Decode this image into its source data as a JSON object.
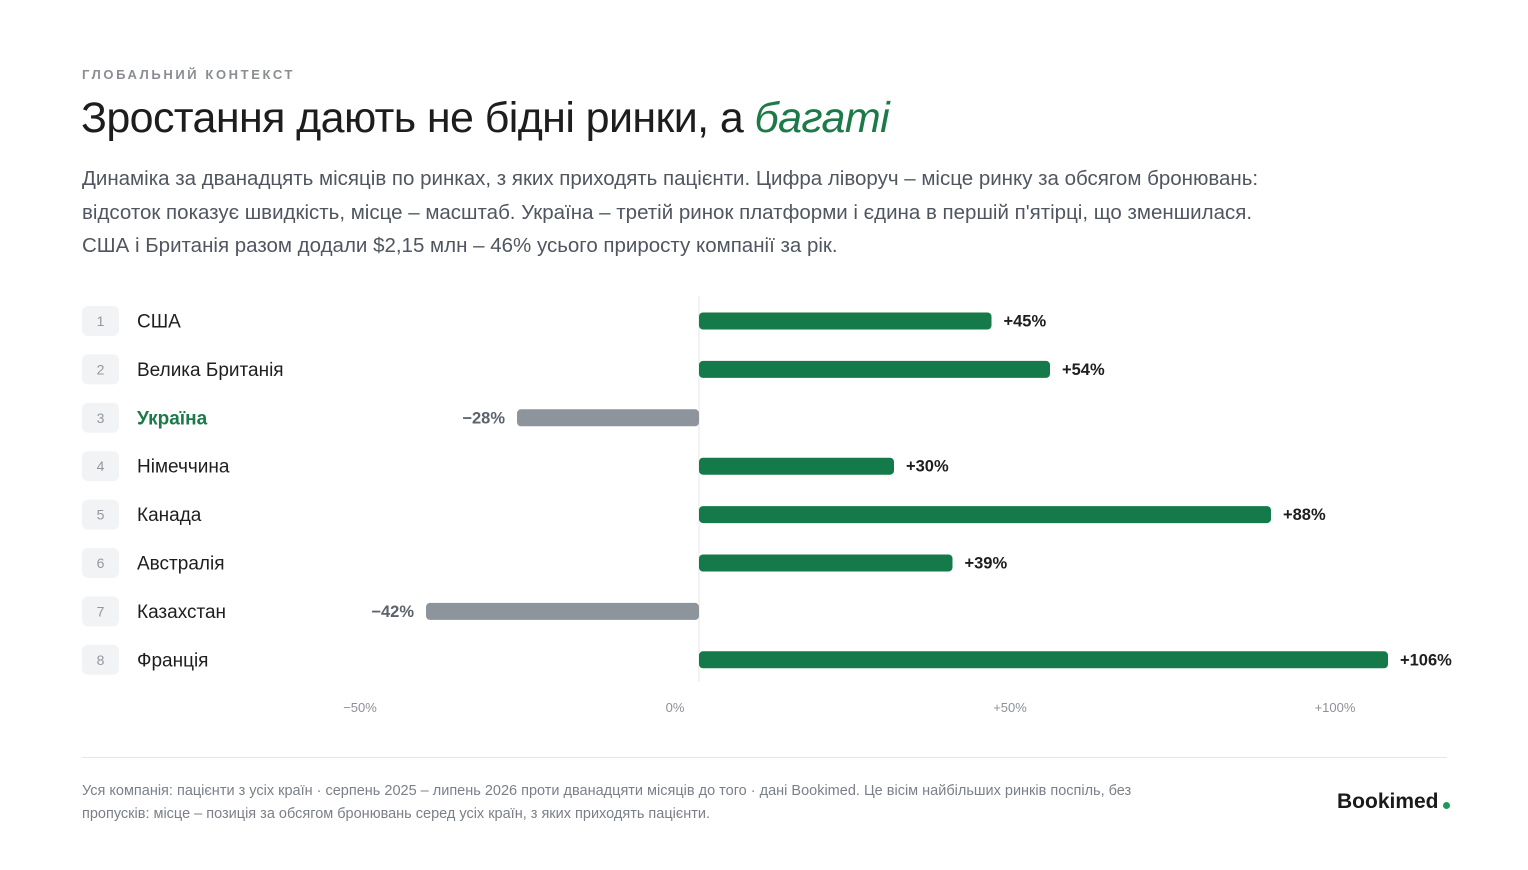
{
  "header": {
    "eyebrow": "ГЛОБАЛЬНИЙ КОНТЕКСТ",
    "title_main": "Зростання дають не бідні ринки, а ",
    "title_accent": "багаті",
    "lede": "Динаміка за дванадцять місяців по ринках, з яких приходять пацієнти. Цифра ліворуч – місце ринку за обсягом бронювань: відсоток показує швидкість, місце – масштаб. Україна – третій ринок платформи і єдина в першій п'ятірці, що зменшилася. США і Британія разом додали $2,15 млн – 46% усього приросту компанії за рік."
  },
  "colors": {
    "positive": "#157a49",
    "negative": "#8e949c",
    "highlight_label": "#1b7a47",
    "rank_badge_bg": "#f1f3f5"
  },
  "chart_data": {
    "type": "bar",
    "orientation": "horizontal",
    "categories": [
      "США",
      "Велика Британія",
      "Україна",
      "Німеччина",
      "Канада",
      "Австралія",
      "Казахстан",
      "Франція"
    ],
    "ranks": [
      "1",
      "2",
      "3",
      "4",
      "5",
      "6",
      "7",
      "8"
    ],
    "values": [
      45,
      54,
      -28,
      30,
      88,
      39,
      -42,
      106
    ],
    "value_labels": [
      "+45%",
      "+54%",
      "−28%",
      "+30%",
      "+88%",
      "+39%",
      "−42%",
      "+106%"
    ],
    "highlight": "Україна",
    "xlim": [
      -55,
      110
    ],
    "xticks": [
      -50,
      0,
      50,
      100
    ],
    "xtick_labels": [
      "−50%",
      "0%",
      "+50%",
      "+100%"
    ],
    "grid": false,
    "legend": "none"
  },
  "footer": {
    "note": "Уся компанія: пацієнти з усіх країн · серпень 2025 – липень 2026 проти дванадцяти місяців до того · дані Bookimed. Це вісім найбільших ринків поспіль, без пропусків: місце – позиція за обсягом бронювань серед усіх країн, з яких приходять пацієнти.",
    "brand": "Bookimed"
  }
}
